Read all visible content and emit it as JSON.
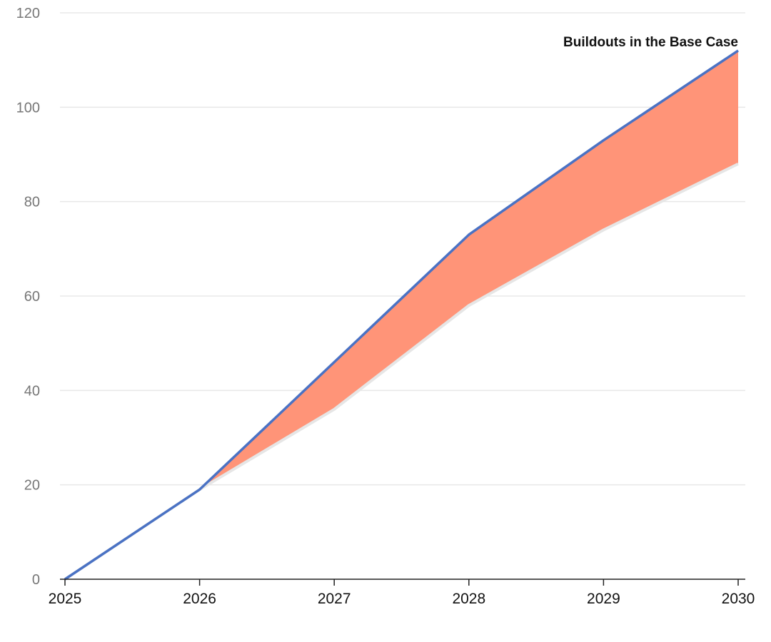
{
  "chart_data": {
    "type": "area",
    "title": "",
    "xlabel": "",
    "ylabel": "",
    "x": [
      "2025",
      "2026",
      "2027",
      "2028",
      "2029",
      "2030"
    ],
    "series": [
      {
        "values": [
          0,
          19,
          46,
          73,
          93,
          112
        ],
        "color": "#4a72c4"
      },
      {
        "values": [
          0,
          19,
          36,
          58,
          74,
          88
        ],
        "color": "#e6e6e6"
      }
    ],
    "band": {
      "from_series": 1,
      "to_series": 0,
      "color": "#ff9478"
    },
    "ylim": [
      0,
      120
    ],
    "yticks": [
      "0",
      "20",
      "40",
      "60",
      "80",
      "100",
      "120"
    ],
    "grid": true,
    "annotation": {
      "text": "Buildouts in the Base Case",
      "x": "2030",
      "y": 112
    }
  }
}
